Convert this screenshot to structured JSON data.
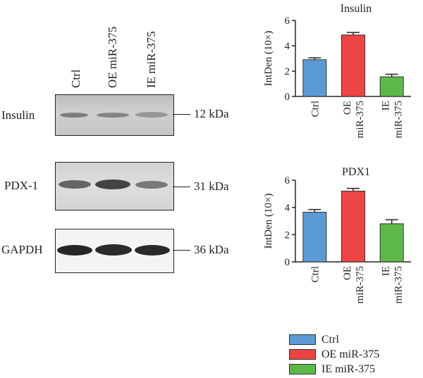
{
  "blot": {
    "lanes": [
      "Ctrl",
      "OE miR-375",
      "IE miR-375"
    ],
    "rows": [
      {
        "protein": "Insulin",
        "size": "12 kDa"
      },
      {
        "protein": "PDX-1",
        "size": "31 kDa"
      },
      {
        "protein": "GAPDH",
        "size": "36 kDa"
      }
    ]
  },
  "colors": {
    "ctrl": "#5b9bd5",
    "oe": "#ef4444",
    "ie": "#5db84a"
  },
  "chart_data": [
    {
      "type": "bar",
      "title": "Insulin",
      "ylabel": "IntDen (10×)",
      "categories": [
        "Ctrl",
        "OE miR-375",
        "IE miR-375"
      ],
      "category_lines": [
        [
          "Ctrl"
        ],
        [
          "OE",
          "miR-375"
        ],
        [
          "IE",
          "miR-375"
        ]
      ],
      "values": [
        2.9,
        4.85,
        1.55
      ],
      "errors": [
        0.15,
        0.2,
        0.2
      ],
      "ylim": [
        0,
        6
      ],
      "yticks": [
        "0",
        "2",
        "4",
        "6"
      ]
    },
    {
      "type": "bar",
      "title": "PDX1",
      "ylabel": "IntDen (10×)",
      "categories": [
        "Ctrl",
        "OE miR-375",
        "IE miR-375"
      ],
      "category_lines": [
        [
          "Ctrl"
        ],
        [
          "OE",
          "miR-375"
        ],
        [
          "IE",
          "miR-375"
        ]
      ],
      "values": [
        3.65,
        5.2,
        2.8
      ],
      "errors": [
        0.2,
        0.2,
        0.3
      ],
      "ylim": [
        0,
        6
      ],
      "yticks": [
        "0",
        "2",
        "4",
        "6"
      ]
    }
  ],
  "legend": [
    "Ctrl",
    "OE miR-375",
    "IE miR-375"
  ]
}
